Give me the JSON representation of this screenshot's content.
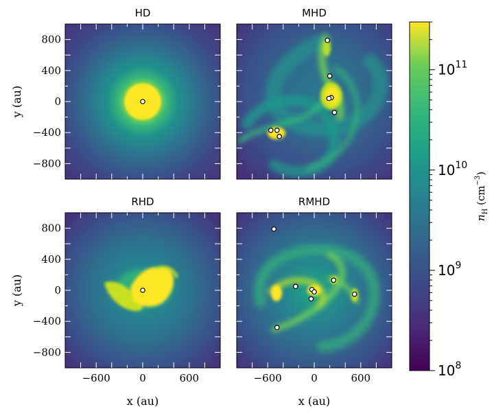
{
  "chart_data": [
    {
      "type": "heatmap",
      "title": "HD",
      "ylabel": "y (au)",
      "xlim": [
        -1000,
        1000
      ],
      "ylim": [
        -1000,
        1000
      ],
      "xticks": [
        -600,
        0,
        600
      ],
      "yticks": [
        -800,
        -400,
        0,
        400,
        800
      ],
      "xtick_labels": [
        "−600",
        "0",
        "600"
      ],
      "ytick_labels": [
        "−800",
        "−400",
        "0",
        "400",
        "800"
      ],
      "sinks": [
        {
          "x": 0,
          "y": 0
        }
      ],
      "structure": "compact central core"
    },
    {
      "type": "heatmap",
      "title": "MHD",
      "xlim": [
        -1000,
        1000
      ],
      "ylim": [
        -1000,
        1000
      ],
      "sinks": [
        {
          "x": 170,
          "y": 790
        },
        {
          "x": 200,
          "y": 330
        },
        {
          "x": 220,
          "y": 50
        },
        {
          "x": 190,
          "y": 40
        },
        {
          "x": 260,
          "y": -140
        },
        {
          "x": -560,
          "y": -370
        },
        {
          "x": -480,
          "y": -370
        },
        {
          "x": -450,
          "y": -450
        }
      ],
      "structure": "filamentary spiral"
    },
    {
      "type": "heatmap",
      "title": "RHD",
      "ylabel": "y (au)",
      "xlabel": "x (au)",
      "xlim": [
        -1000,
        1000
      ],
      "ylim": [
        -1000,
        1000
      ],
      "xticks": [
        -600,
        0,
        600
      ],
      "yticks": [
        -800,
        -400,
        0,
        400,
        800
      ],
      "xtick_labels": [
        "−600",
        "0",
        "600"
      ],
      "ytick_labels": [
        "−800",
        "−400",
        "0",
        "400",
        "800"
      ],
      "sinks": [
        {
          "x": 0,
          "y": 0
        }
      ],
      "structure": "disk with spiral arm"
    },
    {
      "type": "heatmap",
      "title": "RMHD",
      "xlabel": "x (au)",
      "xlim": [
        -1000,
        1000
      ],
      "ylim": [
        -1000,
        1000
      ],
      "xticks": [
        -600,
        0,
        600
      ],
      "xtick_labels": [
        "−600",
        "0",
        "600"
      ],
      "sinks": [
        {
          "x": -520,
          "y": 790
        },
        {
          "x": -240,
          "y": 50
        },
        {
          "x": -30,
          "y": 10
        },
        {
          "x": 0,
          "y": -20
        },
        {
          "x": -40,
          "y": -110
        },
        {
          "x": 250,
          "y": 130
        },
        {
          "x": 520,
          "y": -50
        },
        {
          "x": -480,
          "y": -480
        }
      ],
      "structure": "multiple spiral arms"
    }
  ],
  "colorbar": {
    "label": "n",
    "label_sub": "H",
    "label_unit": "(cm",
    "label_exp": "−3",
    "label_close": ")",
    "scale": "log",
    "range": [
      100000000.0,
      300000000000.0
    ],
    "colormap": "viridis",
    "tick_labels": [
      {
        "base": "10",
        "exp": "8"
      },
      {
        "base": "10",
        "exp": "9"
      },
      {
        "base": "10",
        "exp": "10"
      },
      {
        "base": "10",
        "exp": "11"
      }
    ]
  },
  "colors": {
    "dark": "#440154",
    "mid": "#21918c",
    "bright": "#fde725",
    "sink_fill": "#ffffff",
    "sink_stroke": "#000000"
  }
}
